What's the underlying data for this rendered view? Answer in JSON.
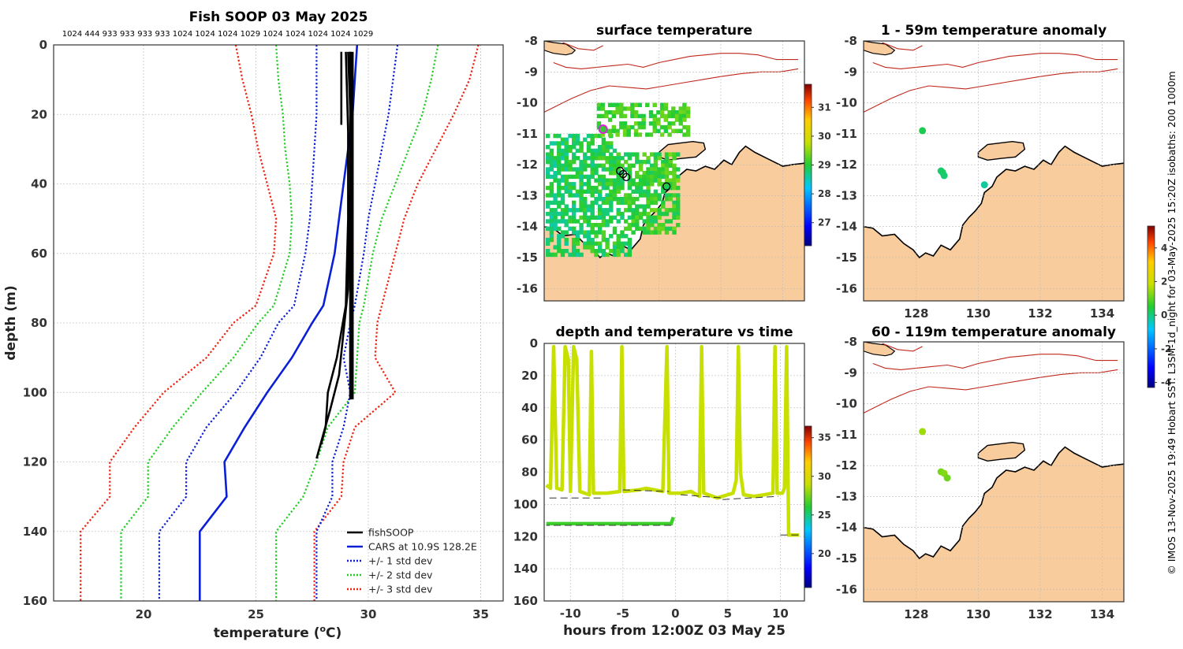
{
  "chart_data": [
    {
      "id": "profile",
      "type": "line",
      "title": "Fish SOOP 03 May 2025",
      "subtitle": "1024 444 933 933 933 933 1024 1024 1024 1029 1024 1024 1024 1024 1029",
      "xlabel": "temperature (",
      "xlabel_sup": "o",
      "xlabel_suffix": "C)",
      "ylabel": "depth (m)",
      "xlim": [
        16,
        36
      ],
      "ylim": [
        0,
        160
      ],
      "xticks": [
        20,
        25,
        30,
        35
      ],
      "yticks": [
        0,
        20,
        40,
        60,
        80,
        100,
        120,
        140,
        160
      ],
      "grid": true,
      "legend_position": "bottom-right",
      "cars_depths": [
        0,
        10,
        20,
        30,
        40,
        50,
        60,
        75,
        80,
        90,
        100,
        110,
        120,
        130,
        140,
        150,
        160
      ],
      "series": [
        {
          "name": "fishSOOP",
          "color": "#000000",
          "style": "solid",
          "profiles": [
            [
              [
                29.1,
                2
              ],
              [
                29.2,
                20
              ],
              [
                29.2,
                40
              ],
              [
                29.2,
                60
              ],
              [
                29.2,
                80
              ],
              [
                29.2,
                102
              ]
            ],
            [
              [
                29.0,
                2
              ],
              [
                29.1,
                25
              ],
              [
                29.1,
                50
              ],
              [
                29.0,
                75
              ],
              [
                28.6,
                90
              ],
              [
                28.2,
                100
              ],
              [
                28.1,
                110
              ],
              [
                27.9,
                115
              ]
            ],
            [
              [
                28.8,
                2
              ],
              [
                28.8,
                10
              ],
              [
                28.8,
                23
              ]
            ],
            [
              [
                29.2,
                2
              ],
              [
                29.2,
                40
              ],
              [
                29.1,
                70
              ],
              [
                28.7,
                95
              ],
              [
                28.3,
                105
              ],
              [
                28.0,
                112
              ],
              [
                27.7,
                119
              ]
            ]
          ]
        },
        {
          "name": "CARS at 10.9S 128.2E",
          "color": "#0a1fd6",
          "style": "solid",
          "temps": [
            29.5,
            29.4,
            29.3,
            29.1,
            28.9,
            28.7,
            28.5,
            28.0,
            27.5,
            26.6,
            25.5,
            24.5,
            23.6,
            23.7,
            22.5,
            22.5,
            22.5
          ]
        },
        {
          "name": "+/- 1 std dev",
          "color": "#0a1fd6",
          "style": "dotted",
          "temps_low": [
            27.7,
            27.7,
            27.7,
            27.6,
            27.5,
            27.4,
            27.2,
            26.7,
            26.0,
            25.2,
            24.1,
            22.8,
            21.9,
            21.9,
            20.7,
            20.7,
            20.7
          ],
          "temps_high": [
            31.3,
            31.1,
            30.9,
            30.6,
            30.3,
            30.0,
            29.8,
            29.4,
            29.2,
            28.9,
            29.2,
            28.9,
            28.4,
            28.4,
            27.7,
            27.7,
            27.7
          ]
        },
        {
          "name": "+/- 2 std dev",
          "color": "#22cc22",
          "style": "dotted",
          "temps_low": [
            25.9,
            26.0,
            26.2,
            26.3,
            26.5,
            26.6,
            26.5,
            25.8,
            25.1,
            24.0,
            22.6,
            21.3,
            20.2,
            20.2,
            19.0,
            19.0,
            19.0
          ],
          "temps_high": [
            33.1,
            32.8,
            32.4,
            31.8,
            31.2,
            30.6,
            30.2,
            29.8,
            29.6,
            29.5,
            29.4,
            28.2,
            27.7,
            27.1,
            25.9,
            25.9,
            25.9
          ]
        },
        {
          "name": "+/- 3 std dev",
          "color": "#ee2211",
          "style": "dotted",
          "temps_low": [
            24.1,
            24.4,
            24.8,
            25.1,
            25.5,
            25.9,
            25.8,
            25.0,
            24.0,
            22.8,
            20.9,
            19.6,
            18.5,
            18.5,
            17.2,
            17.2,
            17.2
          ],
          "temps_high": [
            34.9,
            34.5,
            33.8,
            33.0,
            32.2,
            31.6,
            31.2,
            30.6,
            30.4,
            30.3,
            31.2,
            29.4,
            28.9,
            28.8,
            27.6,
            27.6,
            27.6
          ]
        }
      ]
    },
    {
      "id": "sst-map",
      "type": "heatmap",
      "title": "surface temperature",
      "xlim": [
        126.3,
        134.7
      ],
      "ylim": [
        -16.4,
        -8
      ],
      "yticks": [
        -8,
        -9,
        -10,
        -11,
        -12,
        -13,
        -14,
        -15,
        -16
      ],
      "xticks": [],
      "colorbar": {
        "min": 26.2,
        "max": 31.8,
        "ticks": [
          27,
          28,
          29,
          30,
          31
        ]
      },
      "tracks": [
        [
          128.75,
          -12.2
        ],
        [
          128.85,
          -12.3
        ],
        [
          128.95,
          -12.4
        ],
        [
          130.25,
          -12.7
        ]
      ],
      "ship": [
        128.2,
        -10.85
      ]
    },
    {
      "id": "anom-shallow",
      "type": "heatmap",
      "title": "1 - 59m temperature anomaly",
      "xlim": [
        126.3,
        134.7
      ],
      "ylim": [
        -16.4,
        -8
      ],
      "yticks": [
        -8,
        -9,
        -10,
        -11,
        -12,
        -13,
        -14,
        -15,
        -16
      ],
      "xticks": [
        128,
        130,
        132,
        134
      ],
      "colorbar": {
        "min": -4.3,
        "max": 5.3,
        "ticks": [
          -4,
          -2,
          0,
          2,
          4
        ]
      },
      "points": [
        [
          128.2,
          -10.9,
          0.3
        ],
        [
          128.8,
          -12.2,
          0.1
        ],
        [
          128.85,
          -12.25,
          0.2
        ],
        [
          128.9,
          -12.35,
          0.1
        ],
        [
          130.2,
          -12.65,
          -0.2
        ]
      ]
    },
    {
      "id": "anom-deep",
      "type": "heatmap",
      "title": "60 - 119m temperature anomaly",
      "xlim": [
        126.3,
        134.7
      ],
      "ylim": [
        -16.4,
        -8
      ],
      "yticks": [
        -8,
        -9,
        -10,
        -11,
        -12,
        -13,
        -14,
        -15,
        -16
      ],
      "xticks": [
        128,
        130,
        132,
        134
      ],
      "points": [
        [
          128.2,
          -10.9,
          1.5
        ],
        [
          128.8,
          -12.2,
          1.2
        ],
        [
          128.9,
          -12.25,
          1.3
        ],
        [
          129.0,
          -12.4,
          1.1
        ]
      ]
    },
    {
      "id": "time-depth",
      "type": "scatter",
      "title": "depth and temperature vs time",
      "xlabel": "hours from 12:00Z 03 May 25",
      "xlim": [
        -12.5,
        12.3
      ],
      "ylim": [
        0,
        160
      ],
      "xticks": [
        -10,
        -5,
        0,
        5,
        10
      ],
      "yticks": [
        0,
        20,
        40,
        60,
        80,
        100,
        120,
        140,
        160
      ],
      "colorbar": {
        "min": 15.6,
        "max": 36.5,
        "ticks": [
          20,
          25,
          30,
          35
        ]
      },
      "track": [
        [
          -12.3,
          88
        ],
        [
          -11.9,
          90
        ],
        [
          -11.6,
          2
        ],
        [
          -11.3,
          90
        ],
        [
          -10.8,
          91
        ],
        [
          -10.5,
          2
        ],
        [
          -10.2,
          10
        ],
        [
          -10.0,
          92
        ],
        [
          -9.7,
          2
        ],
        [
          -9.4,
          10
        ],
        [
          -9.1,
          92
        ],
        [
          -8.2,
          94
        ],
        [
          -8.0,
          5
        ],
        [
          -7.8,
          93
        ],
        [
          -6.5,
          93
        ],
        [
          -5.3,
          92
        ],
        [
          -5.1,
          2
        ],
        [
          -4.9,
          92
        ],
        [
          -3.5,
          91
        ],
        [
          -2.8,
          90
        ],
        [
          -1.2,
          92
        ],
        [
          -0.8,
          2
        ],
        [
          -0.6,
          93
        ],
        [
          0.5,
          93
        ],
        [
          1.5,
          92
        ],
        [
          2.3,
          95
        ],
        [
          2.5,
          2
        ],
        [
          2.7,
          93
        ],
        [
          4.0,
          96
        ],
        [
          5.5,
          93
        ],
        [
          5.8,
          85
        ],
        [
          6.0,
          2
        ],
        [
          6.2,
          80
        ],
        [
          6.5,
          94
        ],
        [
          7.5,
          95
        ],
        [
          8.5,
          94
        ],
        [
          9.3,
          93
        ],
        [
          9.5,
          2
        ],
        [
          9.7,
          93
        ],
        [
          10.2,
          93
        ],
        [
          10.4,
          90
        ],
        [
          10.6,
          2
        ],
        [
          10.8,
          119
        ],
        [
          11.8,
          119
        ]
      ],
      "track_deep": [
        [
          -12.3,
          112
        ],
        [
          -0.4,
          112
        ],
        [
          -0.2,
          108
        ]
      ],
      "dashes": [
        [
          -12.0,
          96,
          -7.0,
          96
        ],
        [
          -5.0,
          91,
          -0.6,
          92
        ],
        [
          -0.4,
          113,
          -12.3,
          113
        ],
        [
          0.5,
          94,
          4.5,
          96
        ],
        [
          4.5,
          97,
          9.8,
          95
        ],
        [
          10.0,
          119,
          11.8,
          119
        ]
      ]
    }
  ],
  "ann": {
    "side": "© IMOS 13-Nov-2025 19:49 Hobart SST: L3SM-1d_night for 03-May-2025 15:20Z isobaths: 200  1000m"
  },
  "colors": {
    "land": "#f8cc9c",
    "isobath": "#c0281c",
    "coast": "#000000"
  }
}
